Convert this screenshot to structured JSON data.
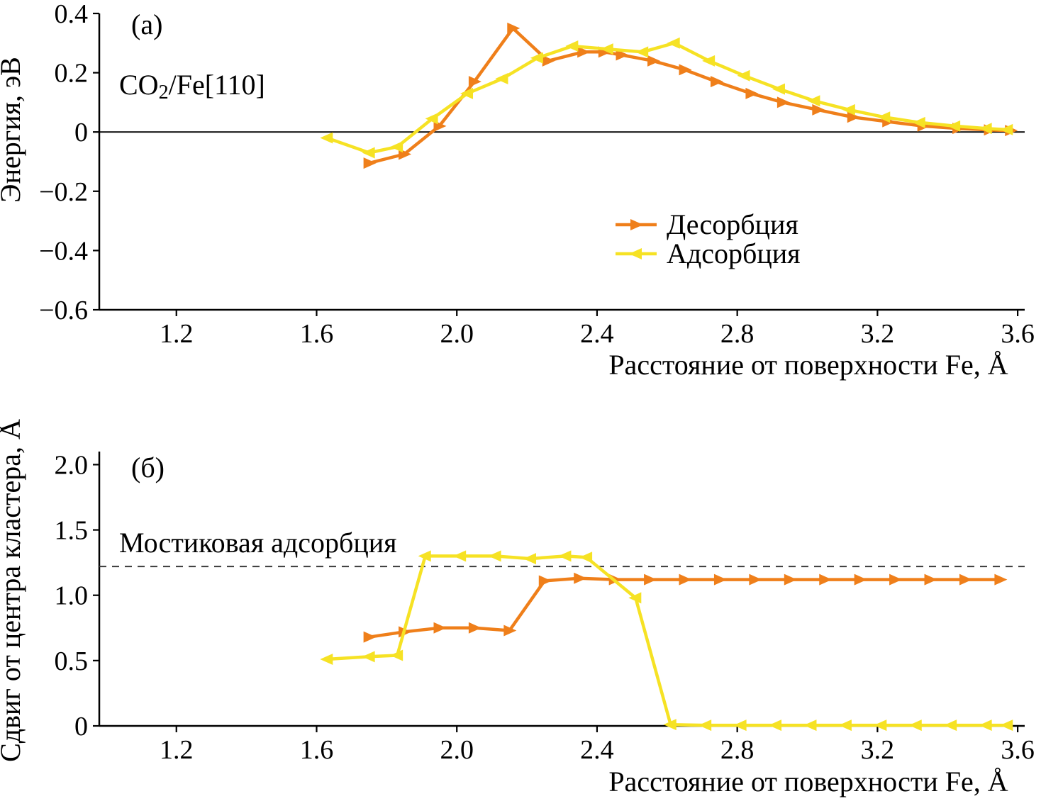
{
  "figure": {
    "background": "#ffffff"
  },
  "chart_data": [
    {
      "id": "a",
      "type": "line",
      "panel_label": "(а)",
      "annotation": {
        "pre": "CO",
        "sub": "2",
        "post": "/Fe[110]"
      },
      "xlabel": "Расстояние от поверхности Fe, Å",
      "ylabel": "Энергия, эВ",
      "xlim": [
        0.98,
        3.62
      ],
      "ylim": [
        -0.6,
        0.4
      ],
      "xticks": [
        "1.2",
        "1.6",
        "2.0",
        "2.4",
        "2.8",
        "3.2",
        "3.6"
      ],
      "yticks": [
        "0.4",
        "0.2",
        "0",
        "−0.2",
        "−0.4",
        "−0.6"
      ],
      "zero_line": true,
      "grid": false,
      "legend_position": "lower-right-inside",
      "legend": [
        {
          "label": "Десорбция",
          "series": 0
        },
        {
          "label": "Адсорбция",
          "series": 1
        }
      ],
      "series": [
        {
          "name": "Десорбция",
          "key": "desorption",
          "color": "#ef7f1a",
          "marker": "right",
          "x": [
            1.75,
            1.85,
            1.95,
            2.05,
            2.16,
            2.26,
            2.36,
            2.42,
            2.47,
            2.56,
            2.65,
            2.74,
            2.84,
            2.93,
            3.03,
            3.13,
            3.23,
            3.33,
            3.43,
            3.52,
            3.58
          ],
          "y": [
            -0.105,
            -0.075,
            0.02,
            0.17,
            0.35,
            0.24,
            0.27,
            0.27,
            0.26,
            0.24,
            0.21,
            0.17,
            0.13,
            0.1,
            0.075,
            0.05,
            0.035,
            0.02,
            0.012,
            0.007,
            0.005
          ]
        },
        {
          "name": "Адсорбция",
          "key": "adsorption",
          "color": "#f6e224",
          "marker": "left",
          "x": [
            1.63,
            1.75,
            1.83,
            1.93,
            2.03,
            2.13,
            2.23,
            2.33,
            2.43,
            2.53,
            2.62,
            2.72,
            2.82,
            2.92,
            3.02,
            3.12,
            3.22,
            3.32,
            3.42,
            3.51,
            3.57
          ],
          "y": [
            -0.02,
            -0.07,
            -0.05,
            0.045,
            0.13,
            0.18,
            0.25,
            0.29,
            0.28,
            0.27,
            0.3,
            0.24,
            0.19,
            0.145,
            0.105,
            0.075,
            0.05,
            0.032,
            0.02,
            0.012,
            0.008
          ]
        }
      ]
    },
    {
      "id": "b",
      "type": "line",
      "panel_label": "(б)",
      "xlabel": "Расстояние от поверхности Fe, Å",
      "ylabel": "Сдвиг от центра кластера, Å",
      "xlim": [
        0.98,
        3.62
      ],
      "ylim": [
        0,
        2.1
      ],
      "xticks": [
        "1.2",
        "1.6",
        "2.0",
        "2.4",
        "2.8",
        "3.2",
        "3.6"
      ],
      "yticks": [
        "2.0",
        "1.5",
        "1.0",
        "0.5",
        "0"
      ],
      "zero_line": false,
      "grid": false,
      "hline": {
        "y": 1.22,
        "style": "dashed",
        "label": "Мостиковая адсорбция"
      },
      "series": [
        {
          "name": "Десорбция",
          "key": "desorption",
          "color": "#ef7f1a",
          "marker": "right",
          "x": [
            1.75,
            1.85,
            1.95,
            2.05,
            2.15,
            2.25,
            2.35,
            2.45,
            2.55,
            2.65,
            2.75,
            2.85,
            2.95,
            3.05,
            3.15,
            3.25,
            3.35,
            3.45,
            3.55
          ],
          "y": [
            0.68,
            0.72,
            0.75,
            0.75,
            0.73,
            1.11,
            1.13,
            1.12,
            1.12,
            1.12,
            1.12,
            1.12,
            1.12,
            1.12,
            1.12,
            1.12,
            1.12,
            1.12,
            1.12
          ]
        },
        {
          "name": "Адсорбция",
          "key": "adsorption",
          "color": "#f6e224",
          "marker": "left",
          "x": [
            1.63,
            1.75,
            1.83,
            1.91,
            2.01,
            2.11,
            2.21,
            2.31,
            2.37,
            2.51,
            2.61,
            2.71,
            2.81,
            2.91,
            3.01,
            3.11,
            3.21,
            3.31,
            3.41,
            3.51,
            3.57
          ],
          "y": [
            0.51,
            0.53,
            0.54,
            1.3,
            1.3,
            1.3,
            1.28,
            1.3,
            1.29,
            0.98,
            0.01,
            0.005,
            0.005,
            0.005,
            0.005,
            0.005,
            0.005,
            0.005,
            0.005,
            0.005,
            0.005
          ]
        }
      ]
    }
  ]
}
